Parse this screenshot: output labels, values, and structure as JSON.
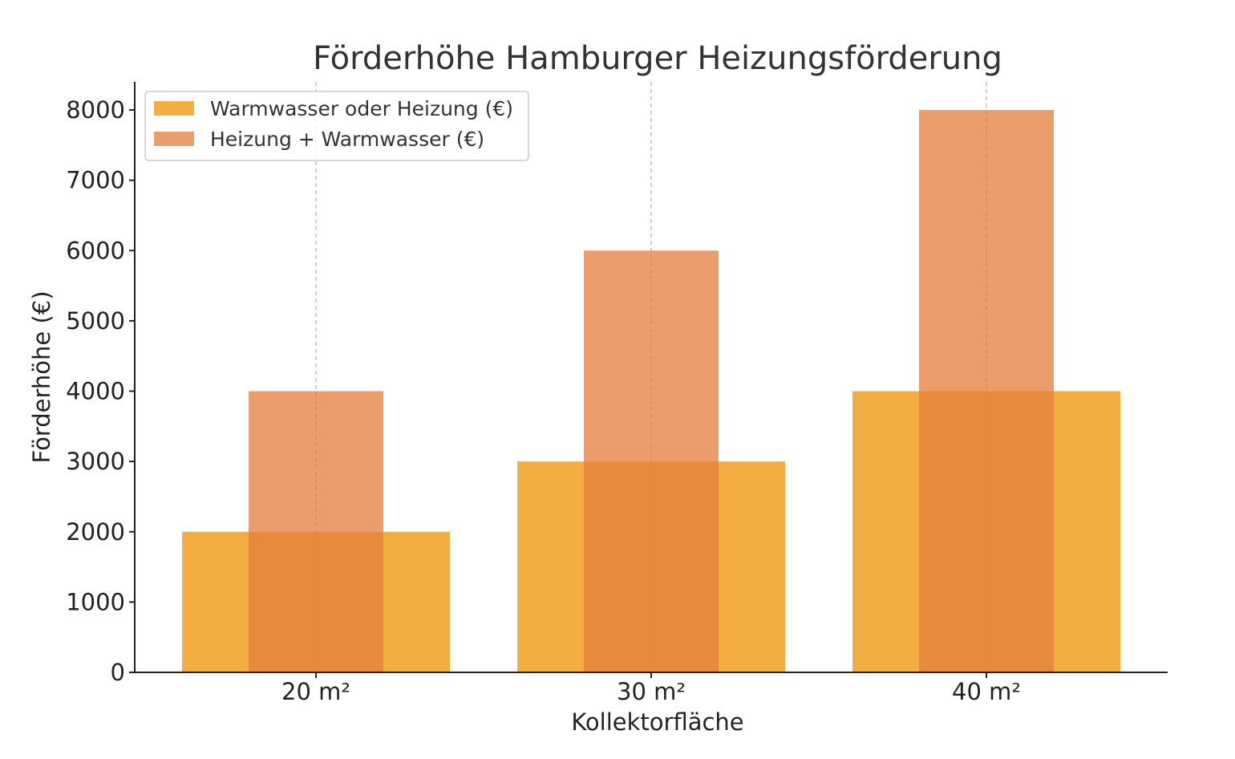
{
  "chart_data": {
    "type": "bar",
    "title": "Förderhöhe Hamburger Heizungsförderung",
    "xlabel": "Kollektorfläche",
    "ylabel": "Förderhöhe (€)",
    "categories": [
      "20 m²",
      "30 m²",
      "40 m²"
    ],
    "series": [
      {
        "name": "Warmwasser oder Heizung (€)",
        "values": [
          2000,
          3000,
          4000
        ],
        "color": "#f0a020",
        "opacity": 0.85
      },
      {
        "name": "Heizung + Warmwasser (€)",
        "values": [
          4000,
          6000,
          8000
        ],
        "color": "#e47d3a",
        "opacity": 0.75
      }
    ],
    "ylim": [
      0,
      8400
    ],
    "yticks": [
      0,
      1000,
      2000,
      3000,
      4000,
      5000,
      6000,
      7000,
      8000
    ],
    "grid": "x-dashed",
    "legend_position": "top-left"
  }
}
